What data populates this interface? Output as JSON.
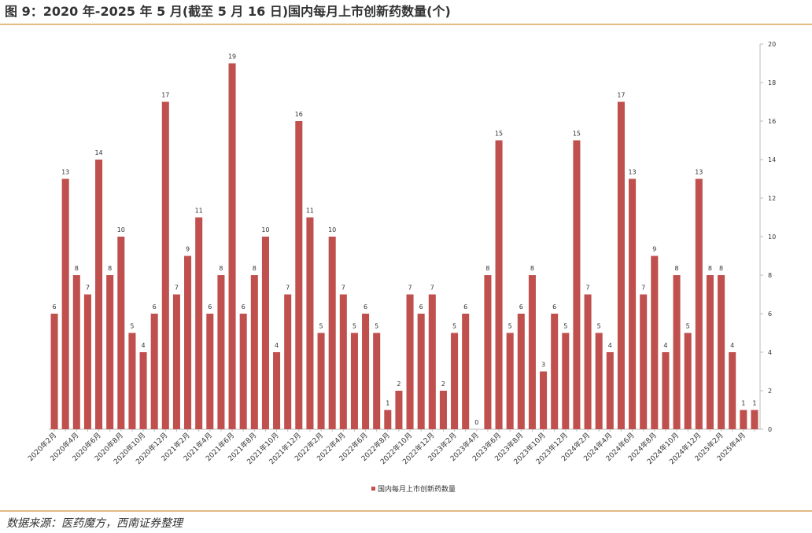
{
  "chart_data": {
    "type": "bar",
    "title": "图 9：2020 年-2025 年 5 月(截至 5 月 16 日)国内每月上市创新药数量(个)",
    "source": "数据来源：医药魔方，西南证券整理",
    "categories": [
      "2020年2月",
      null,
      "2020年4月",
      null,
      "2020年6月",
      null,
      "2020年8月",
      null,
      "2020年10月",
      null,
      "2020年12月",
      null,
      "2021年2月",
      null,
      "2021年4月",
      null,
      "2021年6月",
      null,
      "2021年8月",
      null,
      "2021年10月",
      null,
      "2021年12月",
      null,
      "2022年2月",
      null,
      "2022年4月",
      null,
      "2022年6月",
      null,
      "2022年8月",
      null,
      "2022年10月",
      null,
      "2022年12月",
      null,
      "2023年2月",
      null,
      "2023年4月",
      null,
      "2023年6月",
      null,
      "2023年8月",
      null,
      "2023年10月",
      null,
      "2023年12月",
      null,
      "2024年2月",
      null,
      "2024年4月",
      null,
      "2024年6月",
      null,
      "2024年8月",
      null,
      "2024年10月",
      null,
      "2024年12月",
      null,
      "2025年2月",
      null,
      "2025年4月",
      null
    ],
    "series": [
      {
        "name": "国内每月上市创新药数量",
        "color": "#c0504d",
        "values": [
          6,
          13,
          8,
          7,
          14,
          8,
          10,
          5,
          4,
          6,
          17,
          7,
          9,
          11,
          6,
          8,
          19,
          6,
          8,
          10,
          4,
          7,
          16,
          11,
          5,
          10,
          7,
          5,
          6,
          5,
          1,
          2,
          7,
          6,
          7,
          2,
          5,
          6,
          0,
          8,
          15,
          5,
          6,
          8,
          3,
          6,
          5,
          15,
          7,
          5,
          4,
          17,
          13,
          7,
          9,
          4,
          8,
          5,
          13,
          8,
          8,
          4,
          1,
          1
        ]
      }
    ],
    "ylim": [
      0,
      20
    ],
    "yticks": [
      0,
      2,
      4,
      6,
      8,
      10,
      12,
      14,
      16,
      18,
      20
    ],
    "y_axis_side": "right",
    "grid": false,
    "legend": "bottom"
  }
}
